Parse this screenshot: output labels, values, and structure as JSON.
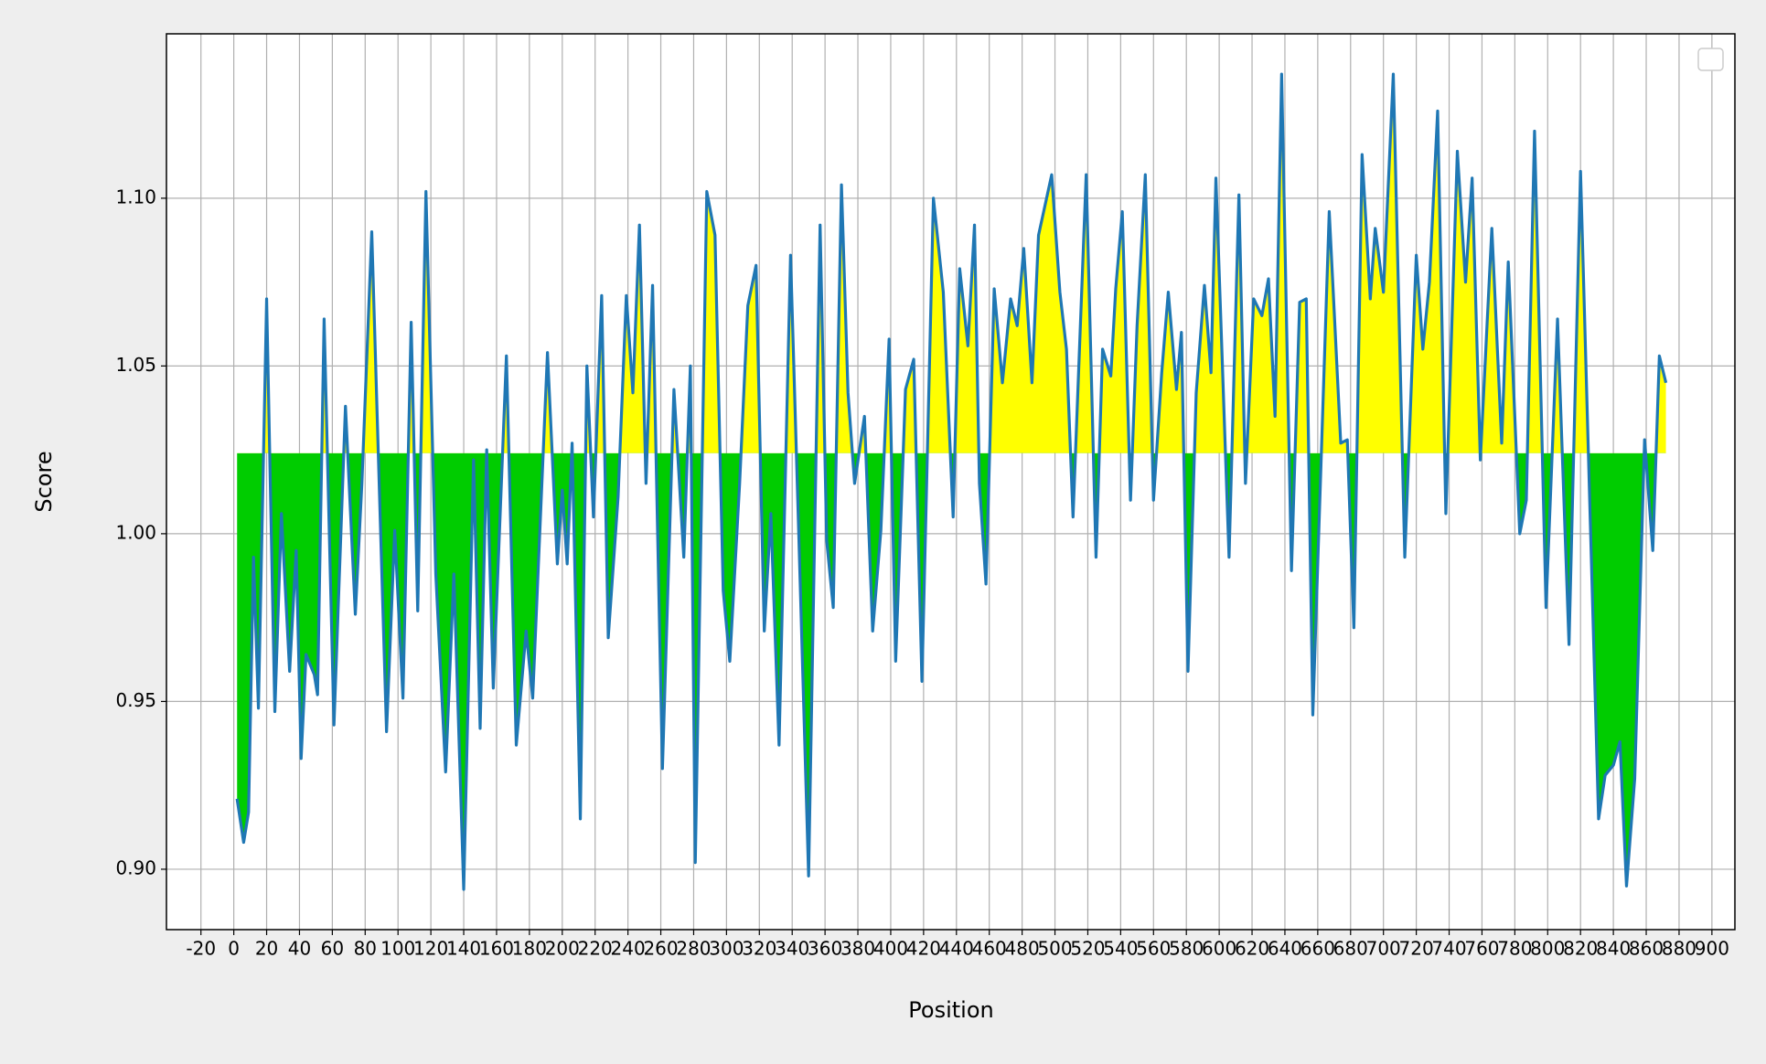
{
  "chart_data": {
    "type": "line",
    "xlabel": "Position",
    "ylabel": "Score",
    "x": [
      2,
      6,
      9,
      12,
      15,
      20,
      25,
      29,
      34,
      38,
      41,
      44,
      49,
      51,
      55,
      61,
      68,
      74,
      78,
      84,
      93,
      98,
      103,
      108,
      112,
      117,
      123,
      129,
      134,
      140,
      146,
      150,
      154,
      158,
      166,
      172,
      178,
      182,
      191,
      197,
      200,
      203,
      206,
      211,
      215,
      219,
      224,
      228,
      234,
      239,
      243,
      247,
      251,
      255,
      261,
      268,
      274,
      278,
      281,
      288,
      293,
      298,
      302,
      308,
      313,
      318,
      323,
      327,
      332,
      339,
      344,
      350,
      357,
      361,
      365,
      370,
      374,
      378,
      384,
      389,
      394,
      399,
      403,
      409,
      414,
      419,
      426,
      432,
      438,
      442,
      447,
      451,
      454,
      458,
      463,
      468,
      473,
      477,
      481,
      486,
      490,
      498,
      503,
      507,
      511,
      519,
      525,
      529,
      534,
      537,
      541,
      546,
      550,
      555,
      560,
      565,
      569,
      574,
      577,
      581,
      586,
      591,
      595,
      598,
      606,
      612,
      616,
      621,
      626,
      630,
      634,
      638,
      644,
      649,
      653,
      657,
      667,
      674,
      678,
      682,
      687,
      692,
      695,
      700,
      706,
      713,
      720,
      724,
      728,
      733,
      738,
      745,
      750,
      754,
      759,
      766,
      772,
      776,
      783,
      787,
      792,
      799,
      806,
      813,
      820,
      831,
      835,
      840,
      844,
      848,
      853,
      859,
      864,
      868,
      872
    ],
    "values": [
      0.921,
      0.908,
      0.917,
      0.993,
      0.948,
      1.07,
      0.947,
      1.006,
      0.959,
      0.995,
      0.933,
      0.964,
      0.958,
      0.952,
      1.064,
      0.943,
      1.038,
      0.976,
      1.015,
      1.09,
      0.941,
      1.001,
      0.951,
      1.063,
      0.977,
      1.102,
      0.988,
      0.929,
      0.988,
      0.894,
      1.022,
      0.942,
      1.025,
      0.954,
      1.053,
      0.937,
      0.971,
      0.951,
      1.054,
      0.991,
      1.013,
      0.991,
      1.027,
      0.915,
      1.05,
      1.005,
      1.071,
      0.969,
      1.011,
      1.071,
      1.042,
      1.092,
      1.015,
      1.074,
      0.93,
      1.043,
      0.993,
      1.05,
      0.902,
      1.102,
      1.089,
      0.983,
      0.962,
      1.015,
      1.068,
      1.08,
      0.971,
      1.006,
      0.937,
      1.083,
      1.0,
      0.898,
      1.092,
      0.998,
      0.978,
      1.104,
      1.042,
      1.015,
      1.035,
      0.971,
      1.001,
      1.058,
      0.962,
      1.043,
      1.052,
      0.956,
      1.1,
      1.072,
      1.005,
      1.079,
      1.056,
      1.092,
      1.015,
      0.985,
      1.073,
      1.045,
      1.07,
      1.062,
      1.085,
      1.045,
      1.089,
      1.107,
      1.072,
      1.055,
      1.005,
      1.107,
      0.993,
      1.055,
      1.047,
      1.073,
      1.096,
      1.01,
      1.062,
      1.107,
      1.01,
      1.048,
      1.072,
      1.043,
      1.06,
      0.959,
      1.042,
      1.074,
      1.048,
      1.106,
      0.993,
      1.101,
      1.015,
      1.07,
      1.065,
      1.076,
      1.035,
      1.137,
      0.989,
      1.069,
      1.07,
      0.946,
      1.096,
      1.027,
      1.028,
      0.972,
      1.113,
      1.07,
      1.091,
      1.072,
      1.137,
      0.993,
      1.083,
      1.055,
      1.075,
      1.126,
      1.006,
      1.114,
      1.075,
      1.106,
      1.022,
      1.091,
      1.027,
      1.081,
      1.0,
      1.01,
      1.12,
      0.978,
      1.064,
      0.967,
      1.108,
      0.915,
      0.928,
      0.931,
      0.938,
      0.895,
      0.927,
      1.028,
      0.995,
      1.053,
      1.045
    ],
    "color": "#1f77b4",
    "threshold": 1.024,
    "fill_colors": {
      "above": "#ffff00",
      "below": "#00cc00"
    },
    "xlim": [
      -41,
      914
    ],
    "ylim": [
      0.882,
      1.149
    ],
    "xticks": [
      -20,
      0,
      20,
      40,
      60,
      80,
      100,
      120,
      140,
      160,
      180,
      200,
      220,
      240,
      260,
      280,
      300,
      320,
      340,
      360,
      380,
      400,
      420,
      440,
      460,
      480,
      500,
      520,
      540,
      560,
      580,
      600,
      620,
      640,
      660,
      680,
      700,
      720,
      740,
      760,
      780,
      800,
      820,
      840,
      860,
      880,
      900
    ],
    "yticks": [
      {
        "value": 0.9,
        "label": "0.90"
      },
      {
        "value": 0.95,
        "label": "0.95"
      },
      {
        "value": 1.0,
        "label": "1.00"
      },
      {
        "value": 1.05,
        "label": "1.05"
      },
      {
        "value": 1.1,
        "label": "1.10"
      }
    ],
    "grid": true
  }
}
